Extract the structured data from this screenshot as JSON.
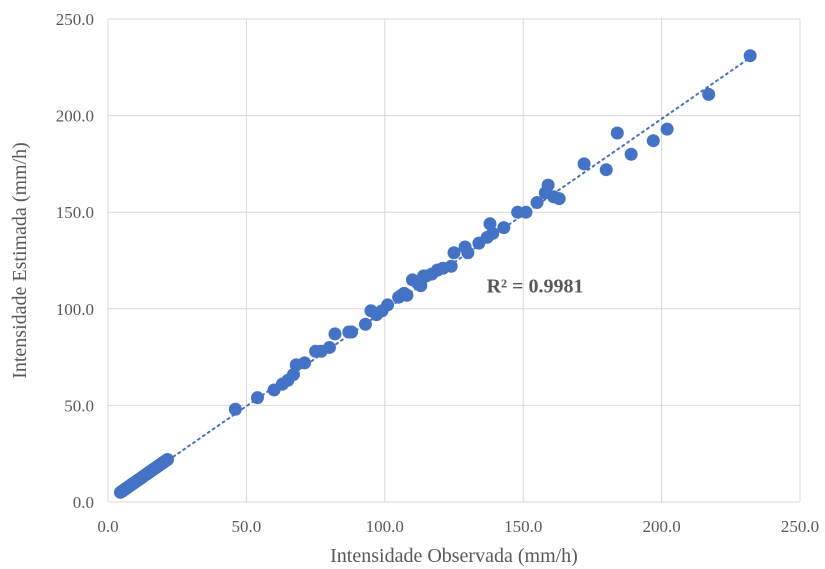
{
  "chart_data": {
    "type": "scatter",
    "xlabel": "Intensidade Observada (mm/h)",
    "ylabel": "Intensidade Estimada (mm/h)",
    "xlim": [
      0,
      250
    ],
    "ylim": [
      0,
      250
    ],
    "x_ticks": [
      "0.0",
      "50.0",
      "100.0",
      "150.0",
      "200.0",
      "250.0"
    ],
    "y_ticks": [
      "0.0",
      "50.0",
      "100.0",
      "150.0",
      "200.0",
      "250.0"
    ],
    "grid": true,
    "trendline": {
      "style": "dotted",
      "x": [
        4,
        232
      ],
      "y": [
        4,
        230
      ]
    },
    "annotations": [
      {
        "text": "R² = 0.9981",
        "x": 155,
        "y": 112
      }
    ],
    "colors": {
      "points": "#4472C4",
      "trendline": "#4472C4",
      "grid": "#d9d9d9",
      "text": "#595959"
    },
    "series": [
      {
        "points": [
          [
            4.5,
            5.0
          ],
          [
            5.0,
            5.5
          ],
          [
            5.5,
            6.0
          ],
          [
            6.0,
            6.5
          ],
          [
            6.5,
            7.0
          ],
          [
            7.0,
            7.5
          ],
          [
            7.5,
            8.0
          ],
          [
            8.0,
            8.5
          ],
          [
            8.5,
            9.0
          ],
          [
            9.0,
            9.5
          ],
          [
            9.5,
            10.0
          ],
          [
            10.0,
            10.5
          ],
          [
            10.5,
            11.0
          ],
          [
            11.0,
            11.5
          ],
          [
            11.5,
            12.0
          ],
          [
            12.0,
            12.5
          ],
          [
            12.5,
            13.0
          ],
          [
            13.0,
            13.5
          ],
          [
            13.5,
            14.0
          ],
          [
            14.0,
            14.5
          ],
          [
            14.5,
            15.0
          ],
          [
            15.0,
            15.5
          ],
          [
            15.5,
            16.0
          ],
          [
            16.0,
            16.5
          ],
          [
            16.5,
            17.0
          ],
          [
            17.0,
            17.5
          ],
          [
            17.5,
            18.0
          ],
          [
            18.0,
            18.5
          ],
          [
            18.5,
            19.0
          ],
          [
            19.0,
            19.5
          ],
          [
            19.5,
            20.0
          ],
          [
            20.0,
            20.5
          ],
          [
            20.5,
            21.0
          ],
          [
            21.0,
            21.5
          ],
          [
            21.5,
            22.0
          ],
          [
            46,
            48
          ],
          [
            54,
            54
          ],
          [
            60,
            58
          ],
          [
            63,
            61
          ],
          [
            65,
            63
          ],
          [
            67,
            66
          ],
          [
            68,
            71
          ],
          [
            71,
            72
          ],
          [
            75,
            78
          ],
          [
            77,
            78
          ],
          [
            80,
            80
          ],
          [
            82,
            87
          ],
          [
            87,
            88
          ],
          [
            88,
            88
          ],
          [
            93,
            92
          ],
          [
            95,
            99
          ],
          [
            97,
            97
          ],
          [
            99,
            99
          ],
          [
            101,
            102
          ],
          [
            105,
            106
          ],
          [
            106,
            107
          ],
          [
            107,
            108
          ],
          [
            108,
            107
          ],
          [
            110,
            115
          ],
          [
            112,
            113
          ],
          [
            113,
            112
          ],
          [
            114,
            117
          ],
          [
            115,
            117
          ],
          [
            117,
            118
          ],
          [
            119,
            120
          ],
          [
            121,
            121
          ],
          [
            124,
            122
          ],
          [
            125,
            129
          ],
          [
            129,
            132
          ],
          [
            130,
            129
          ],
          [
            134,
            134
          ],
          [
            137,
            137
          ],
          [
            138,
            144
          ],
          [
            139,
            139
          ],
          [
            143,
            142
          ],
          [
            148,
            150
          ],
          [
            151,
            150
          ],
          [
            155,
            155
          ],
          [
            158,
            160
          ],
          [
            159,
            164
          ],
          [
            161,
            158
          ],
          [
            163,
            157
          ],
          [
            172,
            175
          ],
          [
            180,
            172
          ],
          [
            184,
            191
          ],
          [
            189,
            180
          ],
          [
            197,
            187
          ],
          [
            202,
            193
          ],
          [
            217,
            211
          ],
          [
            232,
            231
          ]
        ]
      }
    ]
  }
}
